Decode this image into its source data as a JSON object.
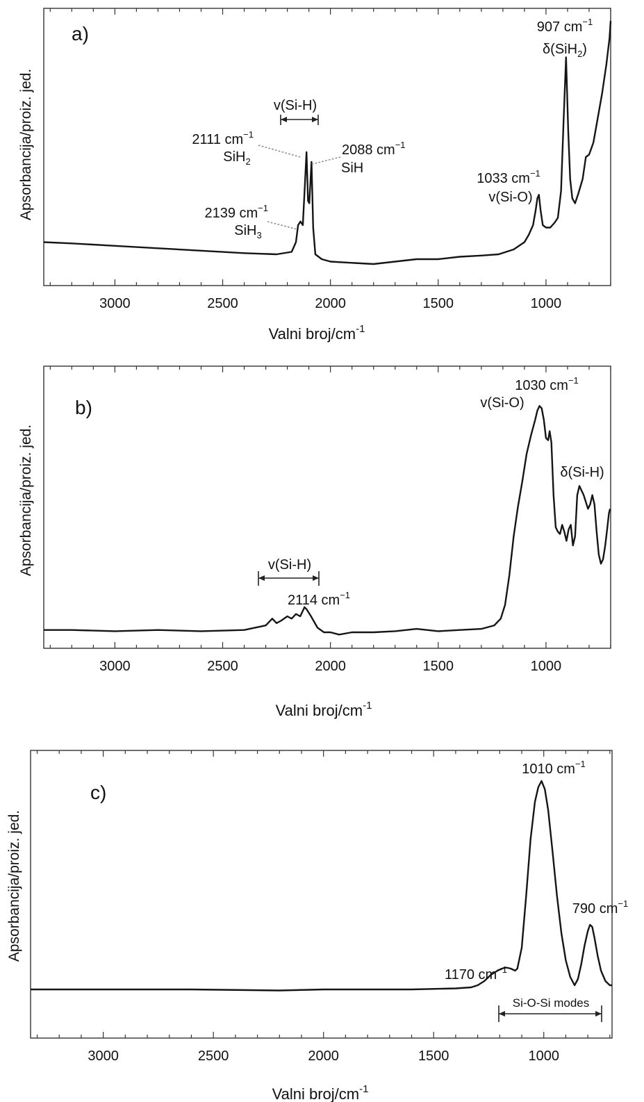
{
  "chart_data": [
    {
      "type": "line",
      "panel_label": "a)",
      "xlabel": "Valni broj/cm",
      "xlabel_sup": "-1",
      "ylabel": "Apsorbancija/proiz. jed.",
      "xlim": [
        3330,
        700
      ],
      "ylim": [
        0,
        1
      ],
      "x_ticks": [
        "3000",
        "2500",
        "2000",
        "1500",
        "1000"
      ],
      "x_tick_values": [
        3000,
        2500,
        2000,
        1500,
        1000
      ],
      "series": [
        {
          "x": [
            3330,
            3200,
            3000,
            2800,
            2600,
            2400,
            2250,
            2180,
            2160,
            2150,
            2139,
            2128,
            2120,
            2111,
            2104,
            2098,
            2088,
            2080,
            2070,
            2040,
            2000,
            1900,
            1800,
            1700,
            1600,
            1500,
            1400,
            1300,
            1220,
            1150,
            1100,
            1080,
            1060,
            1048,
            1040,
            1033,
            1025,
            1015,
            1000,
            980,
            960,
            945,
            930,
            918,
            907,
            897,
            888,
            878,
            865,
            850,
            830,
            815,
            800,
            780,
            760,
            740,
            720,
            705,
            700
          ],
          "y": [
            0.09,
            0.085,
            0.075,
            0.065,
            0.055,
            0.045,
            0.04,
            0.05,
            0.09,
            0.16,
            0.175,
            0.16,
            0.3,
            0.46,
            0.26,
            0.25,
            0.42,
            0.15,
            0.04,
            0.02,
            0.01,
            0.005,
            0.0,
            0.01,
            0.02,
            0.02,
            0.03,
            0.035,
            0.04,
            0.06,
            0.09,
            0.12,
            0.16,
            0.22,
            0.27,
            0.285,
            0.22,
            0.16,
            0.15,
            0.15,
            0.17,
            0.19,
            0.3,
            0.6,
            0.85,
            0.55,
            0.35,
            0.27,
            0.25,
            0.29,
            0.35,
            0.44,
            0.45,
            0.5,
            0.6,
            0.7,
            0.82,
            0.93,
            1.0
          ]
        }
      ],
      "annotations": [
        {
          "text": "907 cm",
          "sup": "−1",
          "x": 907
        },
        {
          "text": "δ(SiH",
          "sub": "2",
          "tail": ")",
          "x": 907
        },
        {
          "text": "2111 cm",
          "sup": "−1",
          "x": 2111
        },
        {
          "text": "SiH",
          "sub": "2",
          "x": 2111
        },
        {
          "text": "2088 cm",
          "sup": "−1",
          "x": 2088
        },
        {
          "text": "SiH",
          "x": 2088
        },
        {
          "text": "2139 cm",
          "sup": "−1",
          "x": 2139
        },
        {
          "text": "SiH",
          "sub": "3",
          "x": 2139
        },
        {
          "text": "1033 cm",
          "sup": "−1",
          "x": 1033
        },
        {
          "text": "v(Si-O)",
          "x": 1033
        },
        {
          "text": "v(Si-H)",
          "range": [
            2200,
            2040
          ]
        }
      ]
    },
    {
      "type": "line",
      "panel_label": "b)",
      "xlabel": "Valni broj/cm",
      "xlabel_sup": "-1",
      "ylabel": "Apsorbancija/proiz. jed.",
      "xlim": [
        3330,
        700
      ],
      "ylim": [
        0,
        1
      ],
      "x_ticks": [
        "3000",
        "2500",
        "2000",
        "1500",
        "1000"
      ],
      "x_tick_values": [
        3000,
        2500,
        2000,
        1500,
        1000
      ],
      "series": [
        {
          "x": [
            3330,
            3200,
            3000,
            2800,
            2600,
            2400,
            2300,
            2270,
            2250,
            2230,
            2200,
            2180,
            2160,
            2140,
            2120,
            2110,
            2090,
            2060,
            2030,
            2000,
            1960,
            1900,
            1800,
            1700,
            1600,
            1500,
            1400,
            1300,
            1240,
            1210,
            1190,
            1170,
            1150,
            1130,
            1110,
            1090,
            1070,
            1050,
            1040,
            1030,
            1020,
            1010,
            1000,
            990,
            983,
            975,
            965,
            955,
            945,
            935,
            925,
            915,
            905,
            895,
            885,
            875,
            865,
            855,
            845,
            835,
            825,
            815,
            805,
            795,
            785,
            775,
            765,
            755,
            745,
            735,
            725,
            715,
            708,
            703
          ],
          "y": [
            0.01,
            0.01,
            0.005,
            0.01,
            0.005,
            0.01,
            0.03,
            0.06,
            0.04,
            0.05,
            0.07,
            0.06,
            0.08,
            0.07,
            0.11,
            0.1,
            0.07,
            0.02,
            0.0,
            0.0,
            -0.01,
            0.0,
            0.0,
            0.005,
            0.015,
            0.005,
            0.01,
            0.015,
            0.03,
            0.06,
            0.12,
            0.25,
            0.42,
            0.55,
            0.66,
            0.78,
            0.86,
            0.93,
            0.97,
            0.99,
            0.98,
            0.93,
            0.85,
            0.84,
            0.88,
            0.83,
            0.6,
            0.46,
            0.44,
            0.43,
            0.47,
            0.44,
            0.4,
            0.45,
            0.47,
            0.38,
            0.42,
            0.6,
            0.64,
            0.62,
            0.6,
            0.57,
            0.54,
            0.56,
            0.6,
            0.56,
            0.44,
            0.34,
            0.3,
            0.32,
            0.38,
            0.46,
            0.52,
            0.54
          ]
        }
      ],
      "annotations": [
        {
          "text": "1030 cm",
          "sup": "−1",
          "x": 1030
        },
        {
          "text": "v(Si-O)",
          "x": 1030
        },
        {
          "text": "δ(Si-H)",
          "x": 840
        },
        {
          "text": "v(Si-H)",
          "range": [
            2320,
            2040
          ]
        },
        {
          "text": "2114 cm",
          "sup": "−1",
          "x": 2114
        }
      ]
    },
    {
      "type": "line",
      "panel_label": "c)",
      "xlabel": "Valni broj/cm",
      "xlabel_sup": "-1",
      "ylabel": "Apsorbancija/proiz. jed.",
      "xlim": [
        3330,
        690
      ],
      "ylim": [
        0,
        1
      ],
      "x_ticks": [
        "3000",
        "2500",
        "2000",
        "1500",
        "1000"
      ],
      "x_tick_values": [
        3000,
        2500,
        2000,
        1500,
        1000
      ],
      "series": [
        {
          "x": [
            3330,
            3000,
            2600,
            2200,
            2000,
            1800,
            1600,
            1400,
            1330,
            1300,
            1270,
            1240,
            1210,
            1190,
            1170,
            1150,
            1130,
            1120,
            1100,
            1080,
            1060,
            1040,
            1025,
            1010,
            995,
            980,
            960,
            940,
            920,
            900,
            880,
            860,
            845,
            830,
            815,
            800,
            790,
            780,
            770,
            755,
            740,
            720,
            700,
            690
          ],
          "y": [
            0.0,
            0.0,
            0.0,
            -0.005,
            0.0,
            0.0,
            0.0,
            0.005,
            0.01,
            0.02,
            0.04,
            0.07,
            0.09,
            0.1,
            0.105,
            0.1,
            0.09,
            0.1,
            0.2,
            0.45,
            0.72,
            0.9,
            0.97,
            1.0,
            0.96,
            0.86,
            0.66,
            0.45,
            0.27,
            0.14,
            0.06,
            0.02,
            0.05,
            0.12,
            0.21,
            0.28,
            0.31,
            0.3,
            0.25,
            0.16,
            0.09,
            0.04,
            0.02,
            0.02
          ]
        }
      ],
      "annotations": [
        {
          "text": "1010 cm",
          "sup": "−1",
          "x": 1010
        },
        {
          "text": "790 cm",
          "sup": "−1",
          "x": 790
        },
        {
          "text": "1170 cm",
          "sup": "−1",
          "x": 1170
        },
        {
          "text": "Si-O-Si modes",
          "range": [
            1200,
            740
          ]
        }
      ]
    }
  ]
}
